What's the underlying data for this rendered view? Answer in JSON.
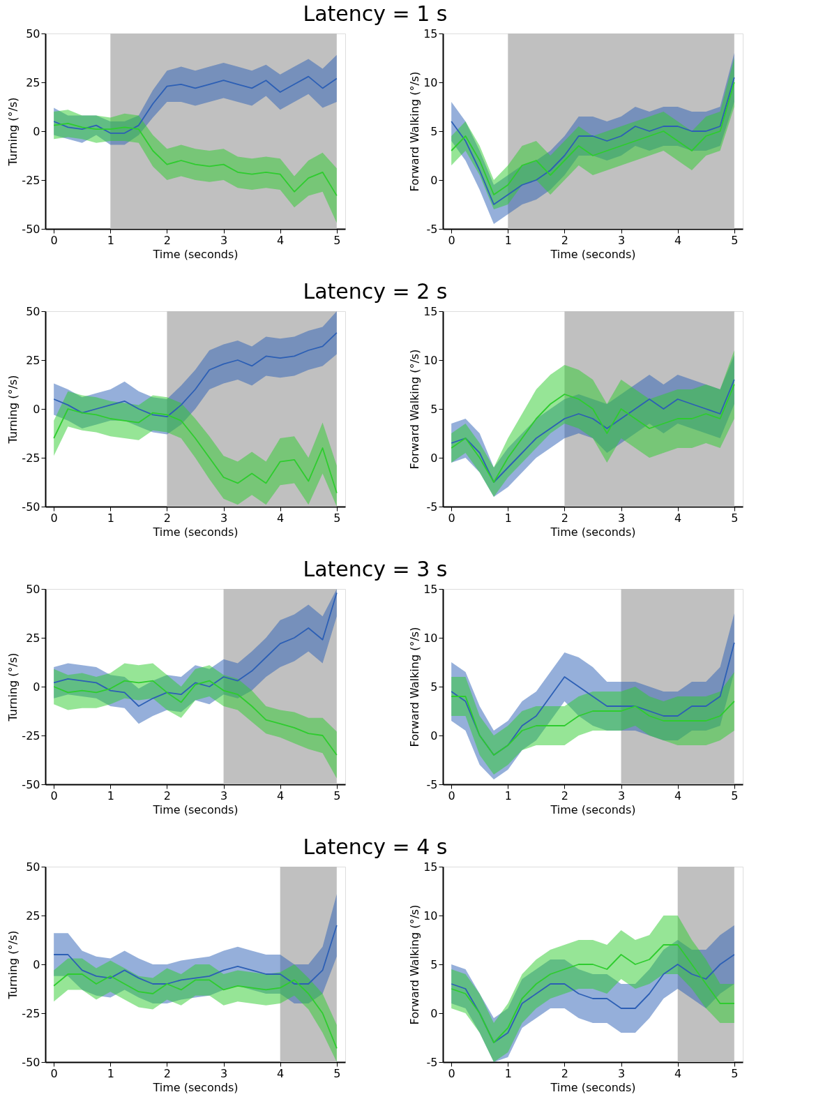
{
  "chart_data": [
    {
      "type": "line",
      "title": "Latency = 1 s",
      "xlabel": "Time (seconds)",
      "ylabel": "Turning (°/s)",
      "x": [
        0,
        0.25,
        0.5,
        0.75,
        1,
        1.25,
        1.5,
        1.75,
        2,
        2.25,
        2.5,
        2.75,
        3,
        3.25,
        3.5,
        3.75,
        4,
        4.25,
        4.5,
        4.75,
        5
      ],
      "xlim": [
        -0.15,
        5.15
      ],
      "xticks": [
        0,
        1,
        2,
        3,
        4,
        5
      ],
      "ylim": [
        -50,
        50
      ],
      "yticks": [
        -50,
        -25,
        0,
        25,
        50
      ],
      "grid": false,
      "bands": [
        {
          "axis": "x",
          "from": 1,
          "to": 5,
          "color": "#c0c0c0"
        }
      ],
      "series": [
        {
          "color": "#2c5fb5",
          "values": [
            5,
            2,
            1,
            3,
            -1,
            -1,
            3,
            14,
            23,
            24,
            22,
            24,
            26,
            24,
            22,
            26,
            20,
            24,
            28,
            22,
            27
          ],
          "lower": [
            -2,
            -4,
            -6,
            -2,
            -7,
            -7,
            -2,
            7,
            15,
            15,
            13,
            15,
            17,
            15,
            13,
            18,
            11,
            15,
            19,
            12,
            15
          ],
          "upper": [
            12,
            8,
            8,
            8,
            5,
            5,
            8,
            21,
            31,
            33,
            31,
            33,
            35,
            33,
            31,
            34,
            29,
            33,
            37,
            32,
            39
          ]
        },
        {
          "color": "#2ecc2e",
          "values": [
            3,
            4,
            2,
            1,
            1,
            2,
            1,
            -10,
            -17,
            -15,
            -17,
            -18,
            -17,
            -21,
            -22,
            -21,
            -22,
            -31,
            -24,
            -21,
            -33
          ],
          "lower": [
            -4,
            -3,
            -4,
            -6,
            -5,
            -5,
            -6,
            -18,
            -25,
            -23,
            -25,
            -26,
            -25,
            -29,
            -30,
            -29,
            -30,
            -39,
            -33,
            -31,
            -47
          ],
          "upper": [
            10,
            11,
            8,
            8,
            7,
            9,
            8,
            -2,
            -9,
            -7,
            -9,
            -10,
            -9,
            -13,
            -14,
            -13,
            -14,
            -23,
            -15,
            -11,
            -19
          ]
        }
      ]
    },
    {
      "type": "line",
      "xlabel": "Time (seconds)",
      "ylabel": "Forward Walking (°/s)",
      "x": [
        0,
        0.25,
        0.5,
        0.75,
        1,
        1.25,
        1.5,
        1.75,
        2,
        2.25,
        2.5,
        2.75,
        3,
        3.25,
        3.5,
        3.75,
        4,
        4.25,
        4.5,
        4.75,
        5
      ],
      "xlim": [
        -0.15,
        5.15
      ],
      "xticks": [
        0,
        1,
        2,
        3,
        4,
        5
      ],
      "ylim": [
        -5,
        15
      ],
      "yticks": [
        -5,
        0,
        5,
        10,
        15
      ],
      "grid": false,
      "bands": [
        {
          "axis": "x",
          "from": 1,
          "to": 5,
          "color": "#c0c0c0"
        }
      ],
      "series": [
        {
          "color": "#2c5fb5",
          "values": [
            6,
            4,
            1,
            -2.5,
            -1.5,
            -0.5,
            0,
            1,
            2.5,
            4.5,
            4.5,
            4,
            4.5,
            5.5,
            5,
            5.5,
            5.5,
            5,
            5,
            5.5,
            10.5
          ],
          "lower": [
            4,
            2,
            -1,
            -4.5,
            -3.5,
            -2.5,
            -2,
            -1,
            0.5,
            2.5,
            2.5,
            2,
            2.5,
            3.5,
            3,
            3.5,
            3.5,
            3,
            3,
            3.5,
            8
          ],
          "upper": [
            8,
            6,
            3,
            -0.5,
            0.5,
            1.5,
            2,
            3,
            4.5,
            6.5,
            6.5,
            6,
            6.5,
            7.5,
            7,
            7.5,
            7.5,
            7,
            7,
            7.5,
            13
          ]
        },
        {
          "color": "#2ecc2e",
          "values": [
            3,
            4.5,
            2,
            -1.5,
            -0.5,
            1.5,
            2,
            0.5,
            2,
            3.5,
            2.5,
            3,
            3.5,
            4,
            4.5,
            5,
            4,
            3,
            4.5,
            5,
            10
          ],
          "lower": [
            1.5,
            3,
            0.5,
            -3,
            -2.5,
            -0.5,
            0,
            -1.5,
            0,
            1.5,
            0.5,
            1,
            1.5,
            2,
            2.5,
            3,
            2,
            1,
            2.5,
            3,
            7.5
          ],
          "upper": [
            4.5,
            6,
            3.5,
            0,
            1.5,
            3.5,
            4,
            2.5,
            4,
            5.5,
            4.5,
            5,
            5.5,
            6,
            6.5,
            7,
            6,
            5,
            6.5,
            7,
            12.5
          ]
        }
      ]
    },
    {
      "type": "line",
      "title": "Latency = 2 s",
      "xlabel": "Time (seconds)",
      "ylabel": "Turning (°/s)",
      "x": [
        0,
        0.25,
        0.5,
        0.75,
        1,
        1.25,
        1.5,
        1.75,
        2,
        2.25,
        2.5,
        2.75,
        3,
        3.25,
        3.5,
        3.75,
        4,
        4.25,
        4.5,
        4.75,
        5
      ],
      "xlim": [
        -0.15,
        5.15
      ],
      "xticks": [
        0,
        1,
        2,
        3,
        4,
        5
      ],
      "ylim": [
        -50,
        50
      ],
      "yticks": [
        -50,
        -25,
        0,
        25,
        50
      ],
      "grid": false,
      "bands": [
        {
          "axis": "x",
          "from": 2,
          "to": 5,
          "color": "#c0c0c0"
        }
      ],
      "series": [
        {
          "color": "#2c5fb5",
          "values": [
            5,
            2,
            -2,
            0,
            2,
            4,
            0,
            -3,
            -4,
            2,
            10,
            20,
            23,
            25,
            22,
            27,
            26,
            27,
            30,
            32,
            39
          ],
          "lower": [
            -3,
            -6,
            -10,
            -8,
            -6,
            -6,
            -9,
            -12,
            -13,
            -8,
            0,
            10,
            13,
            15,
            12,
            17,
            16,
            17,
            20,
            22,
            28
          ],
          "upper": [
            13,
            10,
            6,
            8,
            10,
            14,
            9,
            6,
            5,
            12,
            20,
            30,
            33,
            35,
            32,
            37,
            36,
            37,
            40,
            42,
            50
          ]
        },
        {
          "color": "#2ecc2e",
          "values": [
            -15,
            0,
            -2,
            -3,
            -5,
            -6,
            -7,
            -2,
            -3,
            -6,
            -15,
            -25,
            -35,
            -38,
            -33,
            -38,
            -27,
            -26,
            -37,
            -20,
            -43
          ],
          "lower": [
            -24,
            -9,
            -11,
            -12,
            -14,
            -15,
            -16,
            -11,
            -12,
            -15,
            -25,
            -36,
            -46,
            -49,
            -44,
            -49,
            -39,
            -38,
            -49,
            -33,
            -50
          ],
          "upper": [
            -6,
            9,
            7,
            6,
            4,
            3,
            2,
            7,
            6,
            3,
            -5,
            -14,
            -24,
            -27,
            -22,
            -27,
            -15,
            -14,
            -25,
            -7,
            -29
          ]
        }
      ]
    },
    {
      "type": "line",
      "xlabel": "Time (seconds)",
      "ylabel": "Forward Walking (°/s)",
      "x": [
        0,
        0.25,
        0.5,
        0.75,
        1,
        1.25,
        1.5,
        1.75,
        2,
        2.25,
        2.5,
        2.75,
        3,
        3.25,
        3.5,
        3.75,
        4,
        4.25,
        4.5,
        4.75,
        5
      ],
      "xlim": [
        -0.15,
        5.15
      ],
      "xticks": [
        0,
        1,
        2,
        3,
        4,
        5
      ],
      "ylim": [
        -5,
        15
      ],
      "yticks": [
        -5,
        0,
        5,
        10,
        15
      ],
      "grid": false,
      "bands": [
        {
          "axis": "x",
          "from": 2,
          "to": 5,
          "color": "#c0c0c0"
        }
      ],
      "series": [
        {
          "color": "#2c5fb5",
          "values": [
            1.5,
            2,
            0.5,
            -2.5,
            -1,
            0.5,
            2,
            3,
            4,
            4.5,
            4,
            3,
            4,
            5,
            6,
            5,
            6,
            5.5,
            5,
            4.5,
            8
          ],
          "lower": [
            -0.5,
            0,
            -1.5,
            -4,
            -3,
            -1.5,
            0,
            1,
            2,
            2.5,
            2,
            0.5,
            1.5,
            2.5,
            3.5,
            2.5,
            3.5,
            3,
            2.5,
            2,
            5.5
          ],
          "upper": [
            3.5,
            4,
            2.5,
            -1,
            1,
            2.5,
            4,
            5,
            6,
            6.5,
            6,
            5.5,
            6.5,
            7.5,
            8.5,
            7.5,
            8.5,
            8,
            7.5,
            7,
            10.5
          ]
        },
        {
          "color": "#2ecc2e",
          "values": [
            1,
            2,
            0,
            -2.5,
            0,
            2,
            4,
            5.5,
            6.5,
            6,
            5,
            2.5,
            5,
            4,
            3,
            3.5,
            4,
            4,
            4.5,
            4,
            7.5
          ],
          "lower": [
            -0.5,
            0.5,
            -1.5,
            -4,
            -2,
            -0.5,
            1,
            2.5,
            3.5,
            3,
            2,
            -0.5,
            2,
            1,
            0,
            0.5,
            1,
            1,
            1.5,
            1,
            4
          ],
          "upper": [
            2.5,
            3.5,
            1.5,
            -1,
            2,
            4.5,
            7,
            8.5,
            9.5,
            9,
            8,
            5.5,
            8,
            7,
            6,
            6.5,
            7,
            7,
            7.5,
            7,
            11
          ]
        }
      ]
    },
    {
      "type": "line",
      "title": "Latency = 3 s",
      "xlabel": "Time (seconds)",
      "ylabel": "Turning (°/s)",
      "x": [
        0,
        0.25,
        0.5,
        0.75,
        1,
        1.25,
        1.5,
        1.75,
        2,
        2.25,
        2.5,
        2.75,
        3,
        3.25,
        3.5,
        3.75,
        4,
        4.25,
        4.5,
        4.75,
        5
      ],
      "xlim": [
        -0.15,
        5.15
      ],
      "xticks": [
        0,
        1,
        2,
        3,
        4,
        5
      ],
      "ylim": [
        -50,
        50
      ],
      "yticks": [
        -50,
        -25,
        0,
        25,
        50
      ],
      "grid": false,
      "bands": [
        {
          "axis": "x",
          "from": 3,
          "to": 5,
          "color": "#c0c0c0"
        }
      ],
      "series": [
        {
          "color": "#2c5fb5",
          "values": [
            2,
            4,
            3,
            2,
            -2,
            -3,
            -10,
            -6,
            -3,
            -4,
            2,
            0,
            5,
            3,
            8,
            15,
            22,
            25,
            30,
            24,
            48
          ],
          "lower": [
            -6,
            -4,
            -5,
            -6,
            -10,
            -11,
            -19,
            -15,
            -12,
            -13,
            -7,
            -9,
            -4,
            -6,
            -2,
            5,
            10,
            13,
            18,
            12,
            36
          ],
          "upper": [
            10,
            12,
            11,
            10,
            6,
            5,
            -1,
            3,
            6,
            5,
            11,
            9,
            14,
            12,
            18,
            25,
            34,
            37,
            42,
            36,
            50
          ]
        },
        {
          "color": "#2ecc2e",
          "values": [
            0,
            -3,
            -2,
            -3,
            -1,
            3,
            2,
            3,
            -3,
            -8,
            1,
            3,
            -2,
            -4,
            -10,
            -17,
            -19,
            -21,
            -24,
            -25,
            -35
          ],
          "lower": [
            -9,
            -12,
            -11,
            -11,
            -9,
            -6,
            -7,
            -6,
            -12,
            -16,
            -7,
            -5,
            -10,
            -12,
            -18,
            -24,
            -26,
            -29,
            -32,
            -34,
            -47
          ],
          "upper": [
            9,
            6,
            7,
            5,
            7,
            12,
            11,
            12,
            6,
            0,
            9,
            11,
            6,
            4,
            -2,
            -10,
            -12,
            -13,
            -16,
            -16,
            -23
          ]
        }
      ]
    },
    {
      "type": "line",
      "xlabel": "Time (seconds)",
      "ylabel": "Forward Walking (°/s)",
      "x": [
        0,
        0.25,
        0.5,
        0.75,
        1,
        1.25,
        1.5,
        1.75,
        2,
        2.25,
        2.5,
        2.75,
        3,
        3.25,
        3.5,
        3.75,
        4,
        4.25,
        4.5,
        4.75,
        5
      ],
      "xlim": [
        -0.15,
        5.15
      ],
      "xticks": [
        0,
        1,
        2,
        3,
        4,
        5
      ],
      "ylim": [
        -5,
        15
      ],
      "yticks": [
        -5,
        0,
        5,
        10,
        15
      ],
      "grid": false,
      "bands": [
        {
          "axis": "x",
          "from": 3,
          "to": 5,
          "color": "#c0c0c0"
        }
      ],
      "series": [
        {
          "color": "#2c5fb5",
          "values": [
            4.5,
            3.5,
            0,
            -2,
            -1,
            1,
            2,
            4,
            6,
            5,
            4,
            3,
            3,
            3,
            2.5,
            2,
            2,
            3,
            3,
            4,
            9.5
          ],
          "lower": [
            1.5,
            0.5,
            -3,
            -4.5,
            -3.5,
            -1.5,
            -0.5,
            1.5,
            3.5,
            2,
            1,
            0.5,
            0.5,
            0.5,
            0,
            -0.5,
            -0.5,
            0.5,
            0.5,
            1,
            6.5
          ],
          "upper": [
            7.5,
            6.5,
            3,
            0.5,
            1.5,
            3.5,
            4.5,
            6.5,
            8.5,
            8,
            7,
            5.5,
            5.5,
            5.5,
            5,
            4.5,
            4.5,
            5.5,
            5.5,
            7,
            12.5
          ]
        },
        {
          "color": "#2ecc2e",
          "values": [
            4,
            4,
            0,
            -2,
            -1,
            0.5,
            1,
            1,
            1,
            2,
            2.5,
            2.5,
            2.5,
            3,
            2,
            1.5,
            1.5,
            1.5,
            1.5,
            2,
            3.5
          ],
          "lower": [
            2,
            2,
            -2,
            -4,
            -3,
            -1.5,
            -1,
            -1,
            -1,
            0,
            0.5,
            0.5,
            0.5,
            1,
            0,
            -0.5,
            -1,
            -1,
            -1,
            -0.5,
            0.5
          ],
          "upper": [
            6,
            6,
            2,
            0,
            1,
            2.5,
            3,
            3,
            3,
            4,
            4.5,
            4.5,
            4.5,
            5,
            4,
            3.5,
            4,
            4,
            4,
            4.5,
            6.5
          ]
        }
      ]
    },
    {
      "type": "line",
      "title": "Latency = 4 s",
      "xlabel": "Time (seconds)",
      "ylabel": "Turning (°/s)",
      "x": [
        0,
        0.25,
        0.5,
        0.75,
        1,
        1.25,
        1.5,
        1.75,
        2,
        2.25,
        2.5,
        2.75,
        3,
        3.25,
        3.5,
        3.75,
        4,
        4.25,
        4.5,
        4.75,
        5
      ],
      "xlim": [
        -0.15,
        5.15
      ],
      "xticks": [
        0,
        1,
        2,
        3,
        4,
        5
      ],
      "ylim": [
        -50,
        50
      ],
      "yticks": [
        -50,
        -25,
        0,
        25,
        50
      ],
      "grid": false,
      "bands": [
        {
          "axis": "x",
          "from": 4,
          "to": 5,
          "color": "#c0c0c0"
        }
      ],
      "series": [
        {
          "color": "#2c5fb5",
          "values": [
            5,
            5,
            -3,
            -6,
            -7,
            -3,
            -7,
            -10,
            -10,
            -8,
            -7,
            -6,
            -3,
            -1,
            -3,
            -5,
            -5,
            -10,
            -10,
            -3,
            20
          ],
          "lower": [
            -6,
            -6,
            -13,
            -16,
            -17,
            -13,
            -17,
            -20,
            -20,
            -18,
            -17,
            -16,
            -13,
            -11,
            -13,
            -15,
            -15,
            -20,
            -20,
            -15,
            4
          ],
          "upper": [
            16,
            16,
            7,
            4,
            3,
            7,
            3,
            0,
            0,
            2,
            3,
            4,
            7,
            9,
            7,
            5,
            5,
            0,
            0,
            9,
            36
          ]
        },
        {
          "color": "#2ecc2e",
          "values": [
            -11,
            -5,
            -5,
            -10,
            -6,
            -10,
            -14,
            -15,
            -10,
            -13,
            -8,
            -8,
            -13,
            -11,
            -12,
            -13,
            -12,
            -8,
            -15,
            -25,
            -43
          ],
          "lower": [
            -19,
            -13,
            -13,
            -18,
            -14,
            -18,
            -22,
            -23,
            -18,
            -21,
            -16,
            -16,
            -21,
            -19,
            -20,
            -21,
            -20,
            -16,
            -23,
            -35,
            -50
          ],
          "upper": [
            -3,
            3,
            3,
            -2,
            2,
            -2,
            -6,
            -7,
            -2,
            -5,
            0,
            0,
            -5,
            -3,
            -4,
            -5,
            -4,
            0,
            -7,
            -15,
            -31
          ]
        }
      ]
    },
    {
      "type": "line",
      "xlabel": "Time (seconds)",
      "ylabel": "Forward Walking (°/s)",
      "x": [
        0,
        0.25,
        0.5,
        0.75,
        1,
        1.25,
        1.5,
        1.75,
        2,
        2.25,
        2.5,
        2.75,
        3,
        3.25,
        3.5,
        3.75,
        4,
        4.25,
        4.5,
        4.75,
        5
      ],
      "xlim": [
        -0.15,
        5.15
      ],
      "xticks": [
        0,
        1,
        2,
        3,
        4,
        5
      ],
      "ylim": [
        -5,
        15
      ],
      "yticks": [
        -5,
        0,
        5,
        10,
        15
      ],
      "grid": false,
      "bands": [
        {
          "axis": "x",
          "from": 4,
          "to": 5,
          "color": "#c0c0c0"
        }
      ],
      "series": [
        {
          "color": "#2c5fb5",
          "values": [
            3,
            2.5,
            0,
            -3,
            -2,
            1,
            2,
            3,
            3,
            2,
            1.5,
            1.5,
            0.5,
            0.5,
            2,
            4,
            5,
            4,
            3.5,
            5,
            6
          ],
          "lower": [
            1,
            0.5,
            -2,
            -5,
            -4.5,
            -1.5,
            -0.5,
            0.5,
            0.5,
            -0.5,
            -1,
            -1,
            -2,
            -2,
            -0.5,
            1.5,
            2.5,
            1.5,
            0.5,
            2,
            3
          ],
          "upper": [
            5,
            4.5,
            2,
            -0.5,
            0.5,
            3.5,
            4.5,
            5.5,
            5.5,
            4.5,
            4,
            4,
            3,
            3,
            4.5,
            6.5,
            7.5,
            6.5,
            6.5,
            8,
            9
          ]
        },
        {
          "color": "#2ecc2e",
          "values": [
            2.5,
            2,
            0,
            -3,
            -1.5,
            1.5,
            3,
            4,
            4.5,
            5,
            5,
            4.5,
            6,
            5,
            5.5,
            7,
            7,
            5,
            3,
            1,
            1
          ],
          "lower": [
            0.5,
            0,
            -2,
            -5,
            -4,
            -1,
            0.5,
            1.5,
            2,
            2.5,
            2.5,
            2,
            3.5,
            2.5,
            3,
            4,
            4,
            2.5,
            0.5,
            -1,
            -1
          ],
          "upper": [
            4.5,
            4,
            2,
            -1,
            1,
            4,
            5.5,
            6.5,
            7,
            7.5,
            7.5,
            7,
            8.5,
            7.5,
            8,
            10,
            10,
            7.5,
            5.5,
            3,
            3
          ]
        }
      ]
    }
  ]
}
